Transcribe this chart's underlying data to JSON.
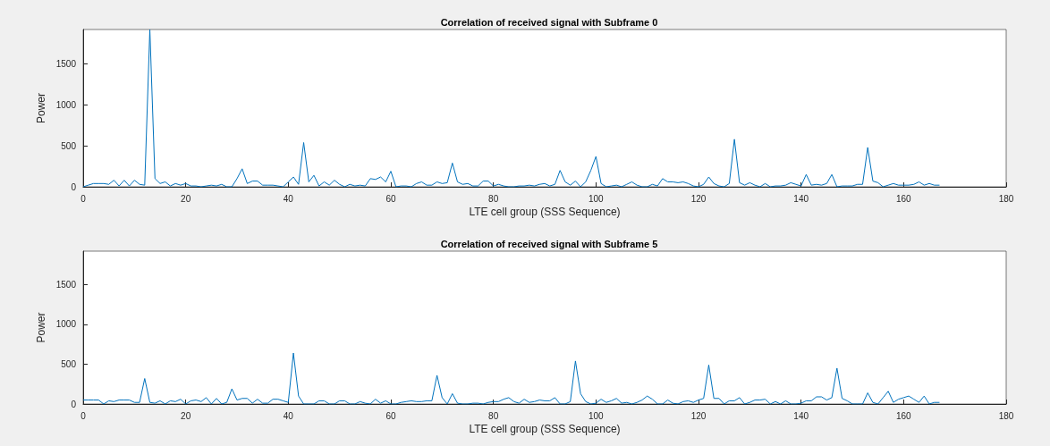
{
  "chart_data": [
    {
      "type": "line",
      "title": "Correlation of received signal with Subframe 0",
      "xlabel": "LTE cell group (SSS Sequence)",
      "ylabel": "Power",
      "xlim": [
        0,
        180
      ],
      "xticks": [
        0,
        20,
        40,
        60,
        80,
        100,
        120,
        140,
        160,
        180
      ],
      "ylim": [
        0,
        1920
      ],
      "yticks": [
        0,
        500,
        1000,
        1500
      ],
      "grid": false,
      "marker": "none",
      "x": [
        0,
        1,
        2,
        3,
        4,
        5,
        6,
        7,
        8,
        9,
        10,
        11,
        12,
        13,
        14,
        15,
        16,
        17,
        18,
        19,
        20,
        21,
        22,
        23,
        24,
        25,
        26,
        27,
        28,
        29,
        30,
        31,
        32,
        33,
        34,
        35,
        36,
        37,
        38,
        39,
        40,
        41,
        42,
        43,
        44,
        45,
        46,
        47,
        48,
        49,
        50,
        51,
        52,
        53,
        54,
        55,
        56,
        57,
        58,
        59,
        60,
        61,
        62,
        63,
        64,
        65,
        66,
        67,
        68,
        69,
        70,
        71,
        72,
        73,
        74,
        75,
        76,
        77,
        78,
        79,
        80,
        81,
        82,
        83,
        84,
        85,
        86,
        87,
        88,
        89,
        90,
        91,
        92,
        93,
        94,
        95,
        96,
        97,
        98,
        99,
        100,
        101,
        102,
        103,
        104,
        105,
        106,
        107,
        108,
        109,
        110,
        111,
        112,
        113,
        114,
        115,
        116,
        117,
        118,
        119,
        120,
        121,
        122,
        123,
        124,
        125,
        126,
        127,
        128,
        129,
        130,
        131,
        132,
        133,
        134,
        135,
        136,
        137,
        138,
        139,
        140,
        141,
        142,
        143,
        144,
        145,
        146,
        147,
        148,
        149,
        150,
        151,
        152,
        153,
        154,
        155,
        156,
        157,
        158,
        159,
        160,
        161,
        162,
        163,
        164,
        165,
        166,
        167
      ],
      "series": [
        {
          "color": "#0072bd",
          "values": [
            0,
            20,
            40,
            40,
            40,
            30,
            80,
            10,
            80,
            10,
            80,
            30,
            20,
            1920,
            100,
            40,
            60,
            10,
            40,
            20,
            40,
            10,
            10,
            0,
            10,
            20,
            10,
            30,
            0,
            0,
            100,
            220,
            40,
            70,
            70,
            20,
            20,
            20,
            10,
            0,
            60,
            120,
            30,
            540,
            60,
            140,
            10,
            60,
            20,
            80,
            30,
            0,
            30,
            10,
            20,
            10,
            100,
            90,
            120,
            60,
            190,
            0,
            10,
            10,
            0,
            40,
            60,
            20,
            20,
            60,
            40,
            50,
            290,
            60,
            30,
            40,
            10,
            10,
            70,
            70,
            10,
            30,
            10,
            0,
            0,
            10,
            10,
            20,
            10,
            30,
            40,
            10,
            30,
            200,
            60,
            20,
            70,
            0,
            60,
            200,
            370,
            40,
            0,
            10,
            20,
            0,
            30,
            60,
            20,
            0,
            0,
            30,
            10,
            100,
            60,
            60,
            50,
            60,
            40,
            10,
            0,
            30,
            120,
            40,
            10,
            0,
            40,
            580,
            50,
            20,
            50,
            20,
            0,
            40,
            0,
            10,
            10,
            20,
            50,
            30,
            10,
            150,
            20,
            30,
            20,
            40,
            150,
            0,
            10,
            10,
            10,
            30,
            30,
            480,
            70,
            50,
            0,
            20,
            40,
            20,
            20,
            20,
            30,
            60,
            20,
            40,
            20,
            20
          ]
        }
      ]
    },
    {
      "type": "line",
      "title": "Correlation of received signal with Subframe 5",
      "xlabel": "LTE cell group (SSS Sequence)",
      "ylabel": "Power",
      "xlim": [
        0,
        180
      ],
      "xticks": [
        0,
        20,
        40,
        60,
        80,
        100,
        120,
        140,
        160,
        180
      ],
      "ylim": [
        0,
        1920
      ],
      "yticks": [
        0,
        500,
        1000,
        1500
      ],
      "grid": false,
      "marker": "none",
      "x": [
        0,
        1,
        2,
        3,
        4,
        5,
        6,
        7,
        8,
        9,
        10,
        11,
        12,
        13,
        14,
        15,
        16,
        17,
        18,
        19,
        20,
        21,
        22,
        23,
        24,
        25,
        26,
        27,
        28,
        29,
        30,
        31,
        32,
        33,
        34,
        35,
        36,
        37,
        38,
        39,
        40,
        41,
        42,
        43,
        44,
        45,
        46,
        47,
        48,
        49,
        50,
        51,
        52,
        53,
        54,
        55,
        56,
        57,
        58,
        59,
        60,
        61,
        62,
        63,
        64,
        65,
        66,
        67,
        68,
        69,
        70,
        71,
        72,
        73,
        74,
        75,
        76,
        77,
        78,
        79,
        80,
        81,
        82,
        83,
        84,
        85,
        86,
        87,
        88,
        89,
        90,
        91,
        92,
        93,
        94,
        95,
        96,
        97,
        98,
        99,
        100,
        101,
        102,
        103,
        104,
        105,
        106,
        107,
        108,
        109,
        110,
        111,
        112,
        113,
        114,
        115,
        116,
        117,
        118,
        119,
        120,
        121,
        122,
        123,
        124,
        125,
        126,
        127,
        128,
        129,
        130,
        131,
        132,
        133,
        134,
        135,
        136,
        137,
        138,
        139,
        140,
        141,
        142,
        143,
        144,
        145,
        146,
        147,
        148,
        149,
        150,
        151,
        152,
        153,
        154,
        155,
        156,
        157,
        158,
        159,
        160,
        161,
        162,
        163,
        164,
        165,
        166,
        167
      ],
      "series": [
        {
          "color": "#0072bd",
          "values": [
            50,
            50,
            50,
            50,
            0,
            40,
            30,
            50,
            50,
            50,
            20,
            20,
            320,
            20,
            10,
            40,
            0,
            40,
            30,
            60,
            0,
            40,
            50,
            30,
            80,
            0,
            70,
            0,
            20,
            190,
            50,
            70,
            70,
            10,
            60,
            10,
            10,
            60,
            60,
            40,
            20,
            640,
            100,
            0,
            0,
            0,
            40,
            40,
            0,
            0,
            40,
            40,
            0,
            0,
            30,
            10,
            0,
            60,
            10,
            40,
            0,
            0,
            20,
            30,
            40,
            30,
            30,
            40,
            40,
            360,
            80,
            0,
            130,
            10,
            0,
            0,
            10,
            10,
            0,
            20,
            30,
            30,
            60,
            80,
            30,
            10,
            60,
            20,
            30,
            50,
            40,
            40,
            80,
            0,
            0,
            30,
            540,
            130,
            30,
            0,
            10,
            60,
            20,
            40,
            70,
            10,
            20,
            0,
            20,
            50,
            100,
            60,
            0,
            0,
            50,
            10,
            0,
            30,
            40,
            20,
            50,
            70,
            490,
            70,
            70,
            0,
            40,
            40,
            80,
            0,
            20,
            50,
            50,
            60,
            0,
            30,
            0,
            40,
            0,
            0,
            10,
            40,
            40,
            90,
            90,
            50,
            80,
            450,
            70,
            40,
            0,
            0,
            0,
            140,
            20,
            0,
            80,
            160,
            20,
            60,
            80,
            100,
            60,
            20,
            100,
            0,
            20,
            20
          ]
        }
      ]
    }
  ]
}
